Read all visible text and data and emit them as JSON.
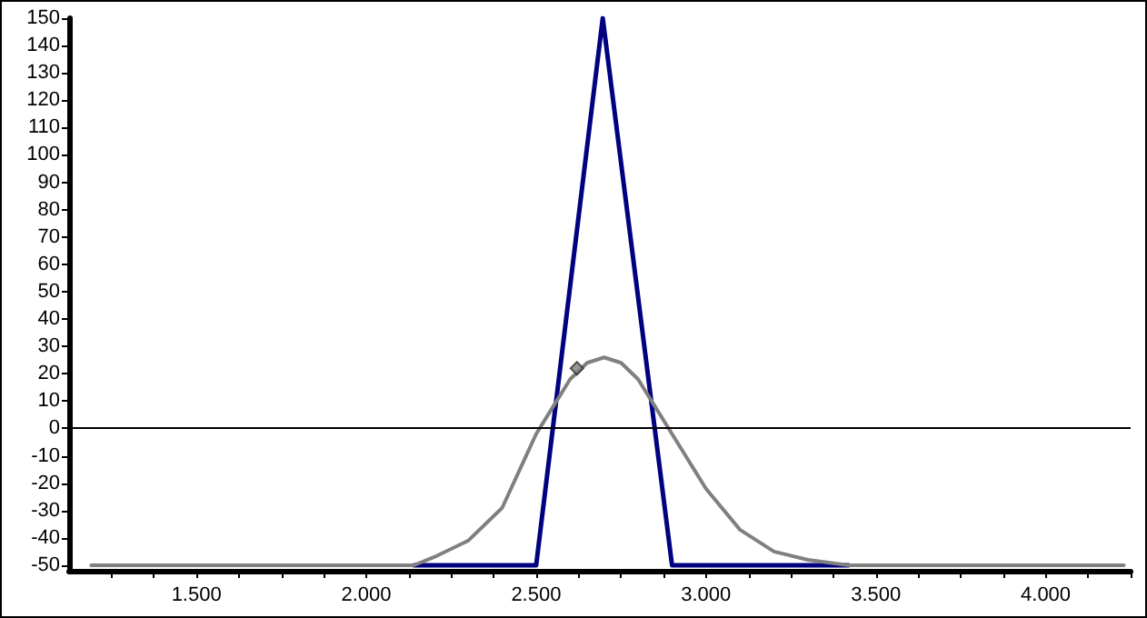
{
  "chart_data": {
    "type": "line",
    "series": [
      {
        "color": "#000080",
        "x": [
          2140,
          2500,
          2696,
          2900,
          3420
        ],
        "values": [
          -50,
          -50,
          150,
          -50,
          -50
        ]
      },
      {
        "color": "#808080",
        "x": [
          1190,
          2140,
          2200,
          2300,
          2400,
          2500,
          2550,
          2600,
          2650,
          2700,
          2750,
          2800,
          2850,
          2900,
          3000,
          3100,
          3200,
          3300,
          3420,
          4230
        ],
        "values": [
          -50,
          -50,
          -47,
          -41,
          -29,
          -2,
          8,
          18,
          24,
          26,
          24,
          18,
          8,
          -2,
          -22,
          -37,
          -45,
          -48,
          -50,
          -50
        ]
      },
      {
        "type": "scatter",
        "color": "#808080",
        "marker": "diamond",
        "x": [
          2620
        ],
        "values": [
          22
        ]
      }
    ],
    "marker": "none",
    "line_style": "solid",
    "grid": false,
    "xlim": [
      1125,
      4250
    ],
    "xticks": [
      {
        "value": 1250,
        "label": null
      },
      {
        "value": 1375,
        "label": null
      },
      {
        "value": 1500,
        "label": "1.500"
      },
      {
        "value": 1625,
        "label": null
      },
      {
        "value": 1750,
        "label": null
      },
      {
        "value": 1875,
        "label": null
      },
      {
        "value": 2000,
        "label": "2.000"
      },
      {
        "value": 2125,
        "label": null
      },
      {
        "value": 2250,
        "label": null
      },
      {
        "value": 2375,
        "label": null
      },
      {
        "value": 2500,
        "label": "2.500"
      },
      {
        "value": 2625,
        "label": null
      },
      {
        "value": 2750,
        "label": null
      },
      {
        "value": 2875,
        "label": null
      },
      {
        "value": 3000,
        "label": "3.000"
      },
      {
        "value": 3125,
        "label": null
      },
      {
        "value": 3250,
        "label": null
      },
      {
        "value": 3375,
        "label": null
      },
      {
        "value": 3500,
        "label": "3.500"
      },
      {
        "value": 3625,
        "label": null
      },
      {
        "value": 3750,
        "label": null
      },
      {
        "value": 3875,
        "label": null
      },
      {
        "value": 4000,
        "label": "4.000"
      },
      {
        "value": 4125,
        "label": null
      },
      {
        "value": 4250,
        "label": null
      }
    ],
    "ylim": [
      -52,
      150
    ],
    "yticks": [
      -50,
      -40,
      -30,
      -20,
      -10,
      0,
      10,
      20,
      30,
      40,
      50,
      60,
      70,
      80,
      90,
      100,
      110,
      120,
      130,
      140,
      150
    ],
    "ref_lines": [
      {
        "axis": "y",
        "value": 0,
        "color": "#000000"
      }
    ]
  }
}
